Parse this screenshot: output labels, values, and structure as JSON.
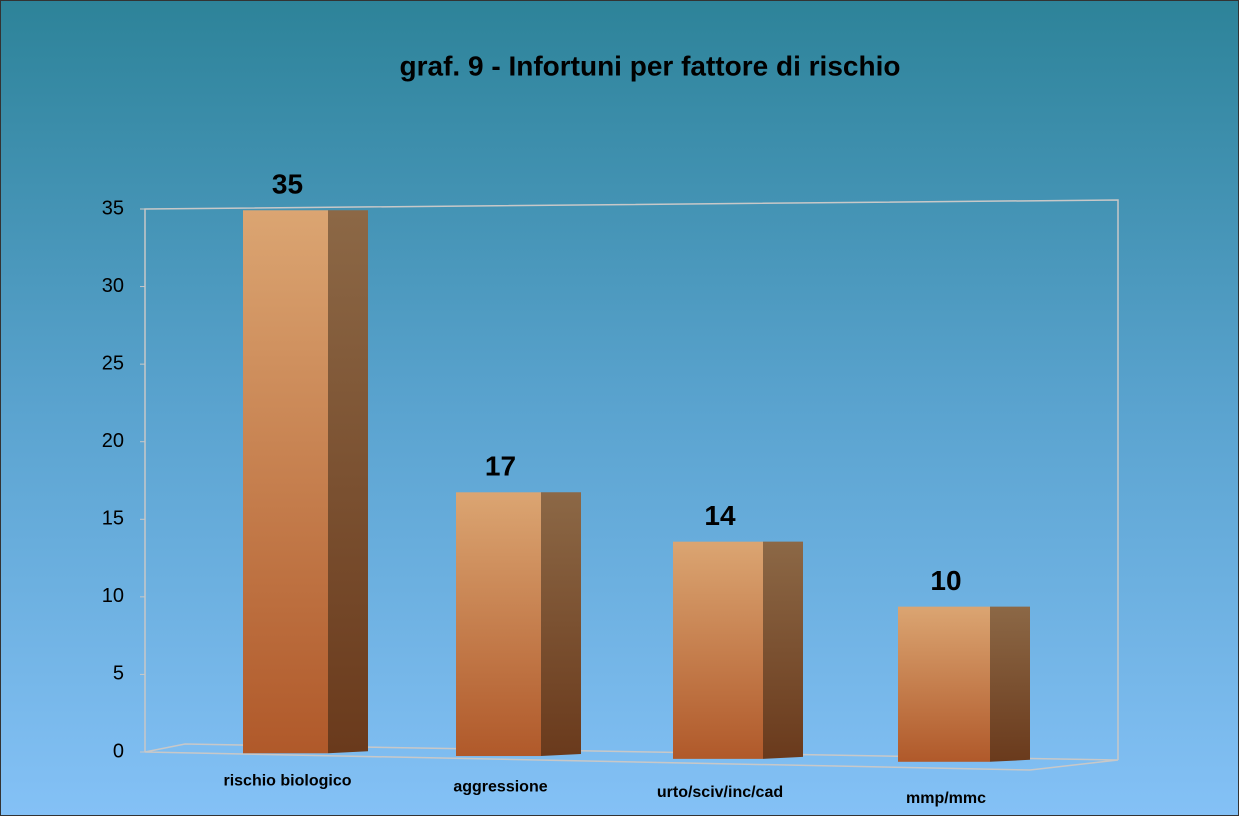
{
  "chart_data": {
    "type": "bar",
    "title": "graf. 9 - Infortuni per fattore di rischio",
    "categories": [
      "rischio biologico",
      "aggressione",
      "urto/sciv/inc/cad",
      "mmp/mmc"
    ],
    "values": [
      35,
      17,
      14,
      10
    ],
    "color": "#c87840",
    "ylim": [
      0,
      35
    ],
    "yticks": [
      0,
      5,
      10,
      15,
      20,
      25,
      30,
      35
    ],
    "grid": false
  }
}
